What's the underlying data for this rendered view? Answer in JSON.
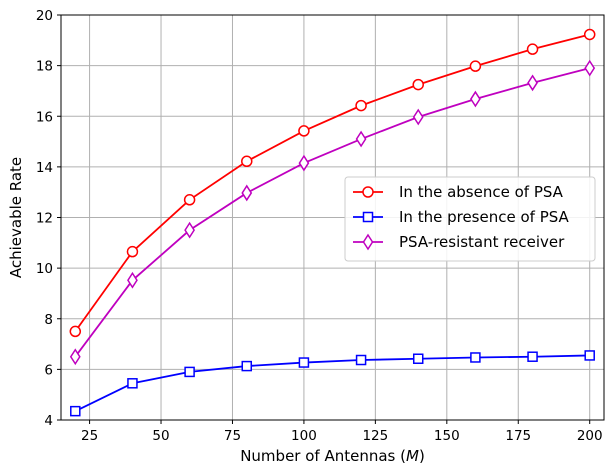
{
  "chart_data": {
    "type": "line",
    "xlabel": "Number of Antennas (",
    "xlabel_var": "M",
    "xlabel_end": ")",
    "ylabel": "Achievable Rate",
    "xlim": [
      15,
      205
    ],
    "ylim": [
      4,
      20
    ],
    "xticks": [
      25,
      50,
      75,
      100,
      125,
      150,
      175,
      200
    ],
    "yticks": [
      4,
      6,
      8,
      10,
      12,
      14,
      16,
      18,
      20
    ],
    "grid": true,
    "legend_position": "center-right",
    "x": [
      20,
      40,
      60,
      80,
      100,
      120,
      140,
      160,
      180,
      200
    ],
    "series": [
      {
        "name": "In the absence of PSA",
        "color": "#ff0000",
        "marker": "circle",
        "values": [
          7.5,
          10.65,
          12.7,
          14.22,
          15.42,
          16.42,
          17.25,
          17.98,
          18.65,
          19.23
        ]
      },
      {
        "name": "In the presence of PSA",
        "color": "#0000ff",
        "marker": "square",
        "values": [
          4.35,
          5.45,
          5.9,
          6.13,
          6.27,
          6.37,
          6.42,
          6.47,
          6.5,
          6.55
        ]
      },
      {
        "name": "PSA-resistant receiver",
        "color": "#bf00bf",
        "marker": "diamond",
        "values": [
          6.5,
          9.52,
          11.5,
          12.97,
          14.15,
          15.1,
          15.97,
          16.68,
          17.32,
          17.9
        ]
      }
    ]
  }
}
